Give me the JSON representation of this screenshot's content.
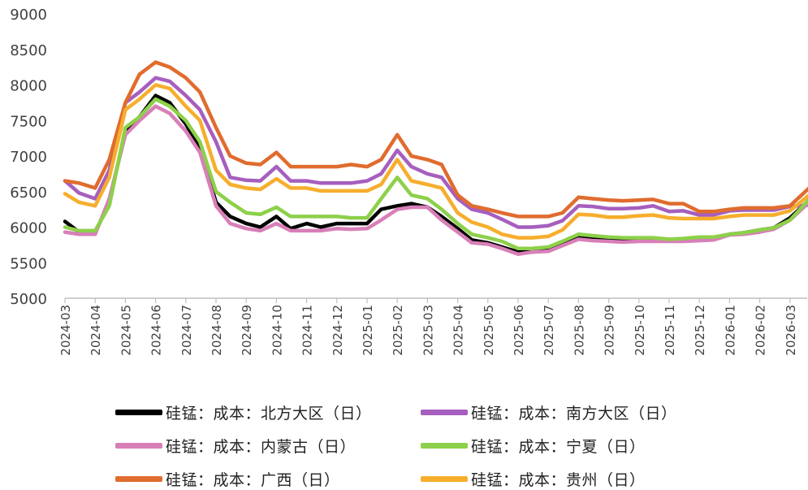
{
  "chart_data": {
    "type": "line",
    "title": "",
    "xlabel": "",
    "ylabel": "",
    "ylim": [
      5000,
      9000
    ],
    "yticks": [
      5000,
      5500,
      6000,
      6500,
      7000,
      7500,
      8000,
      8500,
      9000
    ],
    "x_tick_labels": [
      "2024-03",
      "2024-04",
      "2024-05",
      "2024-06",
      "2024-07",
      "2024-08",
      "2024-09",
      "2024-10",
      "2024-11",
      "2024-12",
      "2025-01",
      "2025-02",
      "2025-03",
      "2025-04",
      "2025-05",
      "2025-06",
      "2025-07",
      "2025-08",
      "2025-09",
      "2025-10",
      "2025-11",
      "2025-12",
      "2026-01",
      "2026-02",
      "2026-03"
    ],
    "x": [
      "2024-03",
      "2024-03-15",
      "2024-04",
      "2024-04-15",
      "2024-05",
      "2024-05-15",
      "2024-06",
      "2024-06-15",
      "2024-07",
      "2024-07-15",
      "2024-08",
      "2024-08-15",
      "2024-09",
      "2024-09-15",
      "2024-10",
      "2024-10-15",
      "2024-11",
      "2024-11-15",
      "2024-12",
      "2024-12-15",
      "2025-01",
      "2025-01-15",
      "2025-02",
      "2025-02-15",
      "2025-03",
      "2025-03-15",
      "2025-04",
      "2025-04-15",
      "2025-05",
      "2025-05-15",
      "2025-06",
      "2025-06-15",
      "2025-07",
      "2025-07-15",
      "2025-08",
      "2025-08-15",
      "2025-09",
      "2025-09-15",
      "2025-10",
      "2025-10-15",
      "2025-11",
      "2025-11-15",
      "2025-12",
      "2025-12-15",
      "2026-01",
      "2026-01-15",
      "2026-02",
      "2026-02-15",
      "2026-03",
      "2026-03-20"
    ],
    "grid": false,
    "legend_position": "bottom",
    "series": [
      {
        "name": "硅锰：成本：北方大区（日）",
        "color": "#000000",
        "values": [
          6080,
          5930,
          5920,
          6350,
          7350,
          7550,
          7850,
          7750,
          7450,
          7100,
          6350,
          6150,
          6050,
          6000,
          6150,
          5980,
          6050,
          6000,
          6050,
          6050,
          6050,
          6250,
          6300,
          6330,
          6280,
          6150,
          5980,
          5820,
          5780,
          5720,
          5650,
          5650,
          5680,
          5760,
          5850,
          5830,
          5820,
          5810,
          5810,
          5810,
          5810,
          5820,
          5840,
          5850,
          5900,
          5920,
          5960,
          5990,
          6130,
          6380
        ]
      },
      {
        "name": "硅锰：成本：南方大区（日）",
        "color": "#a65fbe",
        "values": [
          6650,
          6480,
          6400,
          6800,
          7750,
          7900,
          8100,
          8050,
          7850,
          7650,
          7200,
          6700,
          6660,
          6650,
          6850,
          6650,
          6650,
          6620,
          6620,
          6620,
          6650,
          6750,
          7080,
          6850,
          6750,
          6700,
          6400,
          6250,
          6200,
          6110,
          6000,
          6000,
          6020,
          6090,
          6300,
          6290,
          6260,
          6260,
          6270,
          6300,
          6220,
          6230,
          6170,
          6170,
          6230,
          6240,
          6240,
          6240,
          6290,
          6310
        ]
      },
      {
        "name": "硅锰：成本：内蒙古（日）",
        "color": "#d87fb8",
        "values": [
          5930,
          5900,
          5900,
          6400,
          7300,
          7500,
          7700,
          7600,
          7350,
          7050,
          6300,
          6050,
          5980,
          5950,
          6050,
          5950,
          5950,
          5950,
          5980,
          5970,
          5980,
          6100,
          6250,
          6280,
          6280,
          6100,
          5930,
          5780,
          5760,
          5700,
          5620,
          5650,
          5660,
          5740,
          5830,
          5810,
          5800,
          5790,
          5800,
          5800,
          5800,
          5800,
          5810,
          5820,
          5890,
          5900,
          5930,
          5970,
          6100,
          6350
        ]
      },
      {
        "name": "硅锰：成本：宁夏（日）",
        "color": "#8dd04a",
        "values": [
          6000,
          5950,
          5950,
          6300,
          7400,
          7550,
          7800,
          7700,
          7500,
          7200,
          6500,
          6350,
          6200,
          6180,
          6280,
          6150,
          6150,
          6150,
          6150,
          6130,
          6130,
          6400,
          6700,
          6450,
          6400,
          6250,
          6050,
          5900,
          5850,
          5800,
          5700,
          5700,
          5720,
          5800,
          5900,
          5880,
          5860,
          5850,
          5850,
          5850,
          5830,
          5840,
          5860,
          5860,
          5900,
          5920,
          5960,
          5990,
          6100,
          6390
        ]
      },
      {
        "name": "硅锰：成本：广西（日）",
        "color": "#e06c2e",
        "values": [
          6650,
          6620,
          6550,
          6950,
          7750,
          8150,
          8320,
          8250,
          8100,
          7900,
          7400,
          7000,
          6900,
          6880,
          7050,
          6850,
          6850,
          6850,
          6850,
          6880,
          6850,
          6950,
          7300,
          7000,
          6950,
          6880,
          6450,
          6300,
          6250,
          6200,
          6150,
          6150,
          6150,
          6200,
          6420,
          6400,
          6380,
          6370,
          6380,
          6390,
          6330,
          6330,
          6220,
          6220,
          6250,
          6270,
          6270,
          6270,
          6300,
          6550
        ]
      },
      {
        "name": "硅锰：成本：贵州（日）",
        "color": "#f6ae2d",
        "values": [
          6470,
          6350,
          6300,
          6700,
          7650,
          7800,
          8000,
          7950,
          7700,
          7500,
          6800,
          6600,
          6550,
          6530,
          6680,
          6550,
          6550,
          6510,
          6510,
          6510,
          6510,
          6600,
          6950,
          6650,
          6600,
          6550,
          6200,
          6070,
          6000,
          5900,
          5850,
          5850,
          5870,
          5960,
          6180,
          6170,
          6140,
          6140,
          6160,
          6170,
          6130,
          6120,
          6120,
          6120,
          6150,
          6170,
          6170,
          6170,
          6230,
          6450
        ]
      }
    ]
  }
}
